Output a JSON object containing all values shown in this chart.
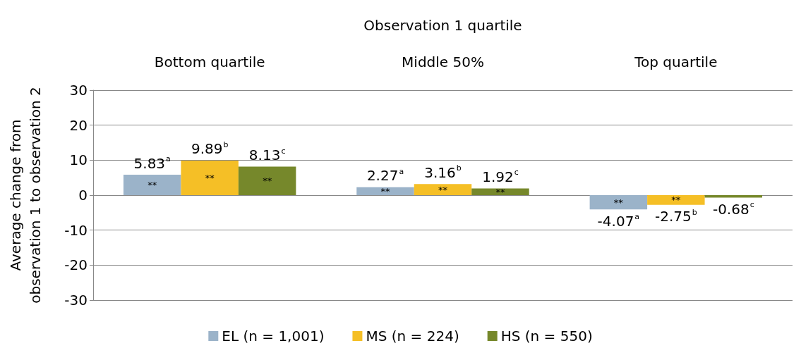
{
  "chart_data": {
    "type": "bar",
    "xlabel": "Observation 1 quartile",
    "ylabel": "Average change from\nobservation 1 to observation 2",
    "categories": [
      "Bottom quartile",
      "Middle 50%",
      "Top quartile"
    ],
    "series": [
      {
        "name": "EL (n = 1,001)",
        "color": "#9bb3c9",
        "values": [
          5.83,
          2.27,
          -4.07
        ],
        "value_labels": [
          "5.83$^{a}$",
          "2.27$^{a}$",
          "-4.07$^{a}$"
        ]
      },
      {
        "name": "MS (n = 224)",
        "color": "#f5bf26",
        "values": [
          9.89,
          3.16,
          -2.75
        ],
        "value_labels": [
          "9.89$^{b}$",
          "3.16$^{b}$",
          "-2.75$^{b}$"
        ]
      },
      {
        "name": "HS (n = 550)",
        "color": "#76882b",
        "values": [
          8.13,
          1.92,
          -0.68
        ],
        "value_labels": [
          "8.13$^{c}$",
          "1.92$^{c}$",
          "-0.68$^{c}$"
        ]
      }
    ],
    "annotations": [
      "**",
      "**",
      "**",
      "**",
      "**",
      "**",
      "**",
      "**"
    ],
    "ylim": [
      -30,
      30
    ],
    "yticks": [
      -30,
      -20,
      -10,
      0,
      10,
      20,
      30
    ],
    "grid": "y",
    "legend": "bottom"
  }
}
